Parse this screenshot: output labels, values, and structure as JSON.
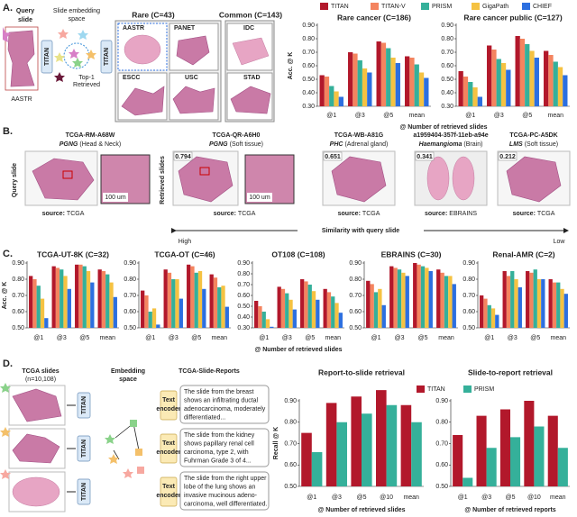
{
  "panel_labels": [
    "A.",
    "B.",
    "C.",
    "D."
  ],
  "panel_a": {
    "query_title": [
      "Query",
      "slide"
    ],
    "query_label": "AASTR",
    "space_title": [
      "Slide embedding",
      "space"
    ],
    "encoder": "TITAN",
    "top1": [
      "Top-1",
      "Retrieved"
    ],
    "rare": {
      "title": "Rare (C=43)",
      "slides": [
        "AASTR",
        "PANET",
        "ESCC",
        "USC"
      ]
    },
    "common": {
      "title": "Common (C=143)",
      "slides": [
        "IDC",
        "STAD"
      ]
    }
  },
  "panel_b": {
    "query_axis": "Query slide",
    "retrieved_axis": "Retrieved slides",
    "scale_bar": "100 um",
    "source_label": "source:",
    "query": {
      "id": "TCGA-RM-A68W",
      "diagnosis": "PGNG",
      "site": "(Head & Neck)",
      "source": "TCGA"
    },
    "retrieved": [
      {
        "score": 0.794,
        "id": "TCGA-QR-A6H0",
        "diagnosis": "PGNG",
        "site": "(Soft tissue)",
        "source": "TCGA"
      },
      {
        "score": 0.651,
        "id": "TCGA-WB-A81G",
        "diagnosis": "PHC",
        "site": "(Adrenal gland)",
        "source": "TCGA"
      },
      {
        "score": 0.341,
        "id": "a1959404-357f-11eb-a94e",
        "diagnosis": "Haemangioma",
        "site": "(Brain)",
        "source": "EBRAINS"
      },
      {
        "score": 0.212,
        "id": "TCGA-PC-A5DK",
        "diagnosis": "LMS",
        "site": "(Soft tissue)",
        "source": "TCGA"
      }
    ],
    "similarity": "Similarity with query slide",
    "high": "High",
    "low": "Low"
  },
  "panel_d": {
    "slides_title": "TCGA slides",
    "slides_n": "(n=10,108)",
    "space_title": [
      "Embedding",
      "space"
    ],
    "reports_title": "TCGA-Slide-Reports",
    "encoder": "TITAN",
    "text_encoder": [
      "Text",
      "encoder"
    ],
    "reports": [
      [
        "The slide from the breast",
        "shows an infiltrating ductal",
        "adenocarcinoma, moderately",
        "differentiated..."
      ],
      [
        "The slide from the kidney",
        "shows papillary renal cell",
        "carcinoma, type 2, with",
        "Fuhrman Grade 3 of 4..."
      ],
      [
        "The slide from the right upper",
        "lobe of the lung shows an",
        "invasive mucinous adeno-",
        "carcinoma, well differentiated."
      ]
    ]
  },
  "chart_data": [
    {
      "type": "bar",
      "title": "Rare cancer (C=186)",
      "y_label": "Acc. @ K",
      "x_label": "@ Number of retrieved slides",
      "legend": "top",
      "grid": false,
      "categories": [
        "@1",
        "@3",
        "@5",
        "mean"
      ],
      "ylim": [
        0.3,
        0.9
      ],
      "yticks": [
        {
          "value": 0.3,
          "label": "0.30"
        },
        {
          "value": 0.4,
          "label": "0.40"
        },
        {
          "value": 0.5,
          "label": "0.50"
        },
        {
          "value": 0.6,
          "label": "0.60"
        },
        {
          "value": 0.7,
          "label": "0.70"
        },
        {
          "value": 0.8,
          "label": "0.80"
        },
        {
          "value": 0.9,
          "label": "0.90"
        }
      ],
      "series": [
        {
          "name": "TITAN",
          "color": "#b2182b",
          "values": [
            0.53,
            0.7,
            0.78,
            0.67
          ]
        },
        {
          "name": "TITAN-V",
          "color": "#f4845f",
          "values": [
            0.52,
            0.69,
            0.77,
            0.66
          ]
        },
        {
          "name": "PRISM",
          "color": "#35b09a",
          "values": [
            0.45,
            0.64,
            0.73,
            0.61
          ]
        },
        {
          "name": "GigaPath",
          "color": "#f5c242",
          "values": [
            0.41,
            0.58,
            0.66,
            0.55
          ]
        },
        {
          "name": "CHIEF",
          "color": "#2c6fe0",
          "values": [
            0.37,
            0.55,
            0.62,
            0.51
          ]
        }
      ]
    },
    {
      "type": "bar",
      "title": "Rare cancer public (C=127)",
      "grid": false,
      "categories": [
        "@1",
        "@3",
        "@5",
        "mean"
      ],
      "ylim": [
        0.3,
        0.9
      ],
      "yticks": [
        {
          "value": 0.3,
          "label": "0.30"
        },
        {
          "value": 0.4,
          "label": "0.40"
        },
        {
          "value": 0.5,
          "label": "0.50"
        },
        {
          "value": 0.6,
          "label": "0.60"
        },
        {
          "value": 0.7,
          "label": "0.70"
        },
        {
          "value": 0.8,
          "label": "0.80"
        },
        {
          "value": 0.9,
          "label": "0.90"
        }
      ],
      "series": [
        {
          "color": "#b2182b",
          "values": [
            0.56,
            0.75,
            0.82,
            0.71
          ]
        },
        {
          "color": "#f4845f",
          "values": [
            0.52,
            0.72,
            0.8,
            0.68
          ]
        },
        {
          "color": "#35b09a",
          "values": [
            0.48,
            0.65,
            0.76,
            0.63
          ]
        },
        {
          "color": "#f5c242",
          "values": [
            0.44,
            0.62,
            0.71,
            0.59
          ]
        },
        {
          "color": "#2c6fe0",
          "values": [
            0.37,
            0.57,
            0.66,
            0.53
          ]
        }
      ]
    },
    {
      "type": "bar",
      "title": "TCGA-UT-8K (C=32)",
      "y_label": "Acc. @ K",
      "grid": false,
      "categories": [
        "@1",
        "@3",
        "@5",
        "mean"
      ],
      "ylim": [
        0.5,
        0.9
      ],
      "yticks": [
        {
          "value": 0.5,
          "label": "0.50"
        },
        {
          "value": 0.6,
          "label": "0.60"
        },
        {
          "value": 0.7,
          "label": "0.70"
        },
        {
          "value": 0.8,
          "label": "0.80"
        },
        {
          "value": 0.9,
          "label": "0.90"
        }
      ],
      "series": [
        {
          "color": "#b2182b",
          "values": [
            0.82,
            0.88,
            0.89,
            0.86
          ]
        },
        {
          "color": "#f4845f",
          "values": [
            0.8,
            0.87,
            0.89,
            0.85
          ]
        },
        {
          "color": "#35b09a",
          "values": [
            0.76,
            0.86,
            0.88,
            0.83
          ]
        },
        {
          "color": "#f5c242",
          "values": [
            0.68,
            0.82,
            0.85,
            0.78
          ]
        },
        {
          "color": "#2c6fe0",
          "values": [
            0.56,
            0.74,
            0.78,
            0.69
          ]
        }
      ]
    },
    {
      "type": "bar",
      "title": "TCGA-OT (C=46)",
      "grid": false,
      "categories": [
        "@1",
        "@3",
        "@5",
        "mean"
      ],
      "ylim": [
        0.5,
        0.9
      ],
      "yticks": [
        {
          "value": 0.5,
          "label": "0.50"
        },
        {
          "value": 0.6,
          "label": "0.60"
        },
        {
          "value": 0.7,
          "label": "0.70"
        },
        {
          "value": 0.8,
          "label": "0.80"
        },
        {
          "value": 0.9,
          "label": "0.90"
        }
      ],
      "series": [
        {
          "color": "#b2182b",
          "values": [
            0.73,
            0.86,
            0.89,
            0.83
          ]
        },
        {
          "color": "#f4845f",
          "values": [
            0.7,
            0.84,
            0.88,
            0.81
          ]
        },
        {
          "color": "#35b09a",
          "values": [
            0.6,
            0.8,
            0.84,
            0.75
          ]
        },
        {
          "color": "#f5c242",
          "values": [
            0.62,
            0.8,
            0.85,
            0.76
          ]
        },
        {
          "color": "#2c6fe0",
          "values": [
            0.52,
            0.68,
            0.74,
            0.63
          ]
        }
      ]
    },
    {
      "type": "bar",
      "title": "OT108 (C=108)",
      "x_label": "@ Number of retrieved slides",
      "grid": false,
      "categories": [
        "@1",
        "@3",
        "@5",
        "mean"
      ],
      "ylim": [
        0.3,
        0.9
      ],
      "yticks": [
        {
          "value": 0.3,
          "label": "0.30"
        },
        {
          "value": 0.4,
          "label": "0.40"
        },
        {
          "value": 0.5,
          "label": "0.50"
        },
        {
          "value": 0.6,
          "label": "0.60"
        },
        {
          "value": 0.7,
          "label": "0.70"
        },
        {
          "value": 0.8,
          "label": "0.80"
        },
        {
          "value": 0.9,
          "label": "0.90"
        }
      ],
      "series": [
        {
          "color": "#b2182b",
          "values": [
            0.55,
            0.68,
            0.75,
            0.66
          ]
        },
        {
          "color": "#f4845f",
          "values": [
            0.5,
            0.66,
            0.73,
            0.63
          ]
        },
        {
          "color": "#35b09a",
          "values": [
            0.45,
            0.62,
            0.7,
            0.59
          ]
        },
        {
          "color": "#f5c242",
          "values": [
            0.38,
            0.56,
            0.64,
            0.53
          ]
        },
        {
          "color": "#2c6fe0",
          "values": [
            0.31,
            0.47,
            0.56,
            0.44
          ]
        }
      ]
    },
    {
      "type": "bar",
      "title": "EBRAINS (C=30)",
      "grid": false,
      "categories": [
        "@1",
        "@3",
        "@5",
        "mean"
      ],
      "ylim": [
        0.5,
        0.9
      ],
      "yticks": [
        {
          "value": 0.5,
          "label": "0.50"
        },
        {
          "value": 0.6,
          "label": "0.60"
        },
        {
          "value": 0.7,
          "label": "0.70"
        },
        {
          "value": 0.8,
          "label": "0.80"
        },
        {
          "value": 0.9,
          "label": "0.90"
        }
      ],
      "series": [
        {
          "color": "#b2182b",
          "values": [
            0.79,
            0.88,
            0.9,
            0.86
          ]
        },
        {
          "color": "#f4845f",
          "values": [
            0.77,
            0.87,
            0.89,
            0.84
          ]
        },
        {
          "color": "#35b09a",
          "values": [
            0.72,
            0.86,
            0.88,
            0.82
          ]
        },
        {
          "color": "#f5c242",
          "values": [
            0.74,
            0.84,
            0.87,
            0.82
          ]
        },
        {
          "color": "#2c6fe0",
          "values": [
            0.64,
            0.82,
            0.85,
            0.77
          ]
        }
      ]
    },
    {
      "type": "bar",
      "title": "Renal-AMR (C=2)",
      "grid": false,
      "categories": [
        "@1",
        "@3",
        "@5",
        "mean"
      ],
      "ylim": [
        0.5,
        0.9
      ],
      "yticks": [
        {
          "value": 0.5,
          "label": "0.50"
        },
        {
          "value": 0.6,
          "label": "0.60"
        },
        {
          "value": 0.7,
          "label": "0.70"
        },
        {
          "value": 0.8,
          "label": "0.80"
        },
        {
          "value": 0.9,
          "label": "0.90"
        }
      ],
      "series": [
        {
          "color": "#b2182b",
          "values": [
            0.7,
            0.85,
            0.85,
            0.8
          ]
        },
        {
          "color": "#f4845f",
          "values": [
            0.68,
            0.82,
            0.84,
            0.78
          ]
        },
        {
          "color": "#35b09a",
          "values": [
            0.64,
            0.85,
            0.86,
            0.78
          ]
        },
        {
          "color": "#f5c242",
          "values": [
            0.62,
            0.8,
            0.8,
            0.74
          ]
        },
        {
          "color": "#2c6fe0",
          "values": [
            0.58,
            0.75,
            0.8,
            0.71
          ]
        }
      ]
    },
    {
      "type": "bar",
      "title": "Report-to-slide retrieval",
      "y_label": "Recall @ K",
      "x_label": "@ Number of retrieved slides",
      "legend": "top",
      "grid": false,
      "categories": [
        "@1",
        "@3",
        "@5",
        "@10",
        "mean"
      ],
      "ylim": [
        0.5,
        0.9
      ],
      "yticks": [
        {
          "value": 0.5,
          "label": "0.50"
        },
        {
          "value": 0.6,
          "label": "0.60"
        },
        {
          "value": 0.7,
          "label": "0.70"
        },
        {
          "value": 0.8,
          "label": "0.80"
        },
        {
          "value": 0.9,
          "label": "0.90"
        }
      ],
      "series": [
        {
          "name": "TITAN",
          "color": "#b2182b",
          "values": [
            0.75,
            0.89,
            0.92,
            0.95,
            0.88
          ]
        },
        {
          "name": "PRISM",
          "color": "#35b09a",
          "values": [
            0.66,
            0.8,
            0.84,
            0.88,
            0.8
          ]
        }
      ]
    },
    {
      "type": "bar",
      "title": "Slide-to-report retrieval",
      "x_label": "@ Number of retrieved reports",
      "grid": false,
      "categories": [
        "@1",
        "@3",
        "@5",
        "@10",
        "mean"
      ],
      "ylim": [
        0.5,
        0.9
      ],
      "yticks": [
        {
          "value": 0.5,
          "label": "0.50"
        },
        {
          "value": 0.6,
          "label": "0.60"
        },
        {
          "value": 0.7,
          "label": "0.70"
        },
        {
          "value": 0.8,
          "label": "0.80"
        },
        {
          "value": 0.9,
          "label": "0.90"
        }
      ],
      "series": [
        {
          "color": "#b2182b",
          "values": [
            0.74,
            0.83,
            0.86,
            0.9,
            0.83
          ]
        },
        {
          "color": "#35b09a",
          "values": [
            0.54,
            0.68,
            0.73,
            0.78,
            0.68
          ]
        }
      ]
    }
  ]
}
